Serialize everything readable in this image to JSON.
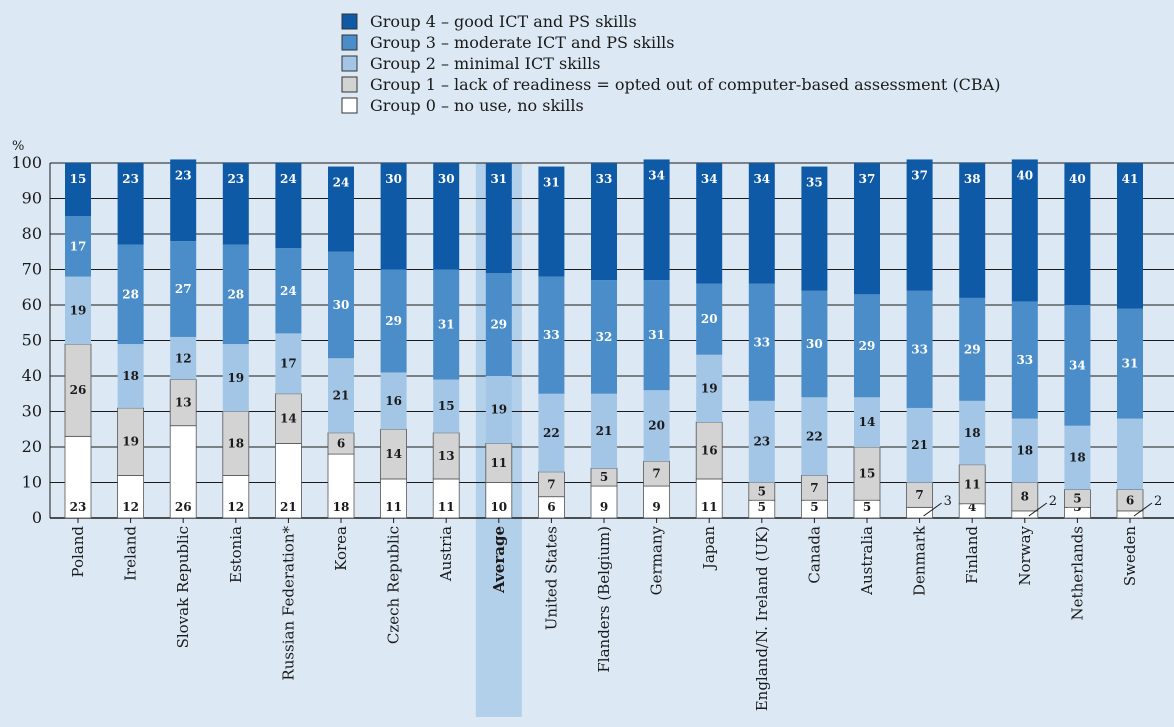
{
  "chart_data": {
    "type": "bar",
    "stacked": true,
    "orientation": "vertical",
    "unit_label": "%",
    "ylim": [
      0,
      100
    ],
    "yticks": [
      0,
      10,
      20,
      30,
      40,
      50,
      60,
      70,
      80,
      90,
      100
    ],
    "grid": true,
    "legend_position": "top",
    "highlight_category": "Average",
    "categories": [
      "Poland",
      "Ireland",
      "Slovak Republic",
      "Estonia",
      "Russian Federation*",
      "Korea",
      "Czech Republic",
      "Austria",
      "Average",
      "United States",
      "Flanders (Belgium)",
      "Germany",
      "Japan",
      "England/N. Ireland (UK)",
      "Canada",
      "Australia",
      "Denmark",
      "Finland",
      "Norway",
      "Netherlands",
      "Sweden"
    ],
    "series": [
      {
        "name": "Group 0 – no use, no skills",
        "color": "#ffffff",
        "label_color": "#1a1a1a",
        "values": [
          23,
          12,
          26,
          12,
          21,
          18,
          11,
          11,
          10,
          6,
          9,
          9,
          11,
          5,
          5,
          5,
          3,
          4,
          2,
          3,
          2
        ]
      },
      {
        "name": "Group 1 –  lack of readiness = opted out of computer-based assessment (CBA)",
        "color": "#d3d3d3",
        "label_color": "#1a1a1a",
        "values": [
          26,
          19,
          13,
          18,
          14,
          6,
          14,
          13,
          11,
          7,
          5,
          7,
          16,
          5,
          7,
          15,
          7,
          11,
          8,
          5,
          6
        ]
      },
      {
        "name": "Group 2 – minimal ICT skills",
        "color": "#a3c6e6",
        "label_color": "#1a1a1a",
        "values": [
          19,
          18,
          12,
          19,
          17,
          21,
          16,
          15,
          19,
          22,
          21,
          20,
          19,
          23,
          22,
          14,
          21,
          18,
          18,
          18,
          20
        ]
      },
      {
        "name": "Group 3 – moderate ICT and PS skills",
        "color": "#4a8dc8",
        "label_color": "#ffffff",
        "values": [
          17,
          28,
          27,
          28,
          24,
          30,
          29,
          31,
          29,
          33,
          32,
          31,
          20,
          33,
          30,
          29,
          33,
          29,
          33,
          34,
          31
        ]
      },
      {
        "name": "Group 4 – good ICT and PS skills",
        "color": "#0f5aa6",
        "label_color": "#ffffff",
        "values": [
          15,
          23,
          23,
          23,
          24,
          24,
          30,
          30,
          31,
          31,
          33,
          34,
          34,
          34,
          35,
          37,
          37,
          38,
          40,
          40,
          41
        ]
      }
    ],
    "hidden_labels": [
      [
        16,
        0
      ],
      [
        18,
        0
      ],
      [
        20,
        0
      ],
      [
        20,
        2
      ]
    ],
    "callout_labels": [
      [
        16,
        0,
        "3"
      ],
      [
        18,
        0,
        "2"
      ],
      [
        20,
        0,
        "2"
      ]
    ]
  }
}
